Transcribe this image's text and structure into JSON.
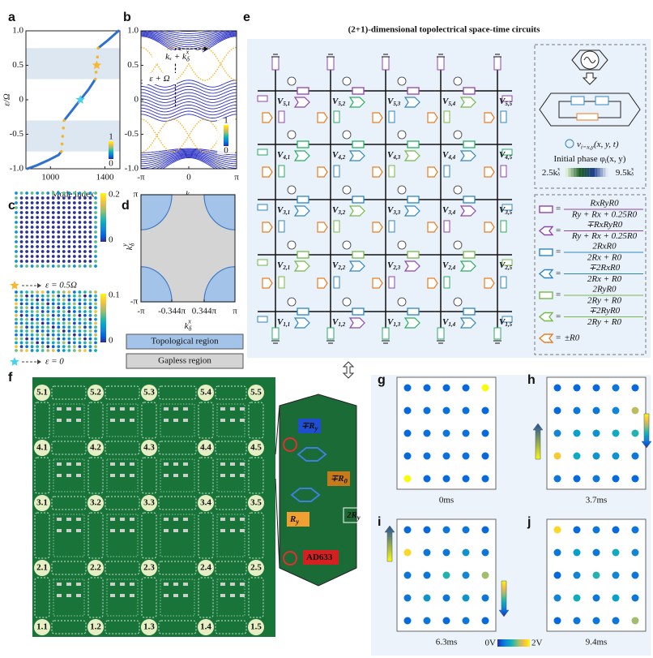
{
  "panels": {
    "a": {
      "label": "a",
      "ylabel": "ε/Ω",
      "xlabel": "Mode index",
      "xlim": [
        820,
        1510
      ],
      "ylim": [
        -1,
        1
      ],
      "xticks": [
        1000,
        1400
      ],
      "yticks": [
        {
          "value": -1,
          "label": "-1.0"
        },
        {
          "value": -0.5,
          "label": "-0.5"
        },
        0,
        {
          "value": 0.5,
          "label": "0.5"
        },
        {
          "value": 1,
          "label": "1.0"
        }
      ],
      "gaps": [
        [
          -0.75,
          -0.3
        ],
        [
          0.3,
          0.75
        ]
      ],
      "gap_color": "#dde7f2",
      "series": [
        {
          "mode": "line",
          "color": "#2f6fd0",
          "x": [
            830,
            900,
            980,
            1060,
            1080,
            null,
            1100,
            1160,
            1220,
            1280,
            1330,
            null,
            1350,
            1420,
            1500
          ],
          "y": [
            -1,
            -0.95,
            -0.88,
            -0.8,
            -0.75,
            null,
            -0.3,
            -0.15,
            0,
            0.15,
            0.3,
            null,
            0.75,
            0.86,
            1
          ]
        },
        {
          "mode": "dots",
          "color": "#f2b52c",
          "x": [
            1080,
            1085,
            1090,
            1095,
            1100,
            1330,
            1335,
            1340,
            1345,
            1350
          ],
          "y": [
            -0.75,
            -0.64,
            -0.53,
            -0.41,
            -0.3,
            0.3,
            0.4,
            0.5,
            0.62,
            0.75
          ]
        }
      ],
      "markers": [
        {
          "x": 1340,
          "y": 0.5,
          "color": "#f5b82e"
        },
        {
          "x": 1220,
          "y": 0,
          "color": "#46d2ec"
        }
      ],
      "colorbar_ticks": [
        0,
        1
      ]
    },
    "b": {
      "label": "b",
      "xlabel": "kₓ",
      "xlim": [
        -1,
        1
      ],
      "ylim": [
        -1,
        1
      ],
      "xticks": [
        {
          "value": -1,
          "label": "-π"
        },
        0,
        {
          "value": 1,
          "label": "π"
        }
      ],
      "yticks": [
        {
          "value": -1,
          "label": "-1.0"
        },
        {
          "value": -0.5,
          "label": "-0.5"
        },
        0,
        {
          "value": 0.5,
          "label": "0.5"
        },
        {
          "value": 1,
          "label": "1.0"
        }
      ],
      "annotations": [
        {
          "base": "kₓ + k",
          "sub": "δ",
          "sup": "x"
        },
        {
          "base": "ε + Ω"
        }
      ],
      "band_color": "#2a30c4",
      "edge_color": "#f2b52c",
      "colorbar_ticks": [
        0,
        1
      ]
    },
    "c": {
      "label": "c",
      "lattices": [
        {
          "colorbar_ticks": [
            0,
            0.2
          ],
          "legend": "ε = 0.5Ω",
          "marker_color": "#f5b82e"
        },
        {
          "colorbar_ticks": [
            0,
            0.1
          ],
          "legend": "ε = 0",
          "marker_color": "#46d2ec"
        }
      ]
    },
    "d": {
      "label": "d",
      "xlabel": {
        "base": "k",
        "sub": "δ",
        "sup": "x"
      },
      "ylabel": {
        "base": "k",
        "sub": "δ",
        "sup": "y"
      },
      "xlim": [
        -1,
        1
      ],
      "ylim": [
        -1,
        1
      ],
      "xticks": [
        {
          "value": -1,
          "label": "-π"
        },
        {
          "value": -0.344,
          "label": "-0.344π"
        },
        {
          "value": 0.344,
          "label": "0.344π"
        },
        {
          "value": 1,
          "label": "π"
        }
      ],
      "yticks": [
        {
          "value": -1,
          "label": "-π"
        },
        {
          "value": 1,
          "label": "π"
        }
      ],
      "legend": [
        {
          "name": "Topological region",
          "color": "#a3c4e8"
        },
        {
          "name": "Gapless region",
          "color": "#d4d4d4"
        }
      ]
    },
    "e": {
      "label": "e",
      "title": "(2+1)-dimensional topolectrical space-time circuits",
      "node_symbol": "V",
      "nodes": [
        [
          "5,1",
          "5,2",
          "5,3",
          "5,4",
          "5,5"
        ],
        [
          "4,1",
          "4,2",
          "4,3",
          "4,4",
          "4,5"
        ],
        [
          "3,1",
          "3,2",
          "3,3",
          "3,4",
          "3,5"
        ],
        [
          "2,1",
          "2,2",
          "2,3",
          "2,4",
          "2,5"
        ],
        [
          "1,1",
          "1,2",
          "1,3",
          "1,4",
          "1,5"
        ]
      ],
      "source_label": {
        "base": "v",
        "sub": "i=x,y",
        "tail": "(x, y, t)"
      },
      "phase_label": {
        "base": "Initial phase φ",
        "sub": "i",
        "tail": "(x, y)"
      },
      "phase_min": {
        "base": "2.5k",
        "sub": "δ",
        "sup": "x"
      },
      "phase_max": {
        "base": "9.5k",
        "sub": "δ",
        "sup": "x"
      },
      "phase_colors": [
        "#dcefd2",
        "#1e5e24",
        "#1f3f8f",
        "#dfe9f6"
      ],
      "formulas": [
        {
          "icon": "rect",
          "color": "#8e44ad",
          "prefix": "=",
          "num": "RxRyR0",
          "den": "Ry + Rx + 0.25R0"
        },
        {
          "icon": "arrow",
          "color": "#8e44ad",
          "prefix": "=",
          "num": "∓RxRyR0",
          "den": "Ry + Rx + 0.25R0"
        },
        {
          "icon": "rect",
          "color": "#2e86c1",
          "prefix": "=",
          "num": "2RxR0",
          "den": "2Rx + R0"
        },
        {
          "icon": "arrow",
          "color": "#2e86c1",
          "prefix": "=",
          "num": "∓2RxR0",
          "den": "2Rx + R0"
        },
        {
          "icon": "rect",
          "color": "#76b947",
          "prefix": "=",
          "num": "2RyR0",
          "den": "2Ry + R0"
        },
        {
          "icon": "arrow",
          "color": "#76b947",
          "prefix": "=",
          "num": "∓2RyR0",
          "den": "2Ry + R0"
        },
        {
          "icon": "arrow",
          "color": "#e67e22",
          "prefix": "=",
          "num": "±R0"
        }
      ]
    },
    "f": {
      "label": "f",
      "nodes": [
        [
          "5.1",
          "5.2",
          "5.3",
          "5.4",
          "5.5"
        ],
        [
          "4.1",
          "4.2",
          "4.3",
          "4.4",
          "4.5"
        ],
        [
          "3.1",
          "3.2",
          "3.3",
          "3.4",
          "3.5"
        ],
        [
          "2.1",
          "2.2",
          "2.3",
          "2.4",
          "2.5"
        ],
        [
          "1.1",
          "1.2",
          "1.3",
          "1.4",
          "1.5"
        ]
      ],
      "inset": [
        {
          "base": "∓R",
          "sub": "y"
        },
        {
          "base": "∓R",
          "sub": "0"
        },
        {
          "base": "R",
          "sub": "y"
        },
        {
          "base": "2R",
          "sub": "y"
        },
        {
          "base": "AD633"
        }
      ]
    }
  },
  "snapshots": [
    {
      "label": "g",
      "time": "0ms",
      "values": [
        [
          0.3,
          0.3,
          0.3,
          0.3,
          2.0
        ],
        [
          0.3,
          0.35,
          0.35,
          0.35,
          0.3
        ],
        [
          0.3,
          0.35,
          0.4,
          0.35,
          0.3
        ],
        [
          0.3,
          0.35,
          0.35,
          0.35,
          0.3
        ],
        [
          2.0,
          0.3,
          0.3,
          0.3,
          0.3
        ]
      ]
    },
    {
      "label": "h",
      "time": "3.7ms",
      "values": [
        [
          0.3,
          0.3,
          0.3,
          0.4,
          0.3
        ],
        [
          0.3,
          0.4,
          0.4,
          0.5,
          1.4
        ],
        [
          0.5,
          0.7,
          0.6,
          0.8,
          0.9
        ],
        [
          1.7,
          0.8,
          0.6,
          0.6,
          0.4
        ],
        [
          0.4,
          0.3,
          0.4,
          0.3,
          0.3
        ]
      ]
    },
    {
      "label": "i",
      "time": "6.3ms",
      "values": [
        [
          0.3,
          0.3,
          0.4,
          0.4,
          0.3
        ],
        [
          1.8,
          0.4,
          0.4,
          0.6,
          0.4
        ],
        [
          0.4,
          0.4,
          0.9,
          0.5,
          1.3
        ],
        [
          0.4,
          0.6,
          0.4,
          0.6,
          0.4
        ],
        [
          0.3,
          0.4,
          0.3,
          0.4,
          0.3
        ]
      ]
    },
    {
      "label": "j",
      "time": "9.4ms",
      "values": [
        [
          1.8,
          0.3,
          0.4,
          0.3,
          0.4
        ],
        [
          0.4,
          0.7,
          0.4,
          0.8,
          0.5
        ],
        [
          0.3,
          0.5,
          0.9,
          0.5,
          0.4
        ],
        [
          0.5,
          0.8,
          0.4,
          0.7,
          0.4
        ],
        [
          0.3,
          0.4,
          0.4,
          0.4,
          1.3
        ]
      ]
    }
  ],
  "snapshot_colorbar": [
    {
      "value": 0,
      "label": "0V"
    },
    {
      "value": 2,
      "label": "2V"
    }
  ],
  "colormap": [
    "#352a87",
    "#0363e1",
    "#1485d4",
    "#06a7c6",
    "#38b99e",
    "#92bf73",
    "#d9ba56",
    "#fcce2e",
    "#f9fb0e"
  ]
}
